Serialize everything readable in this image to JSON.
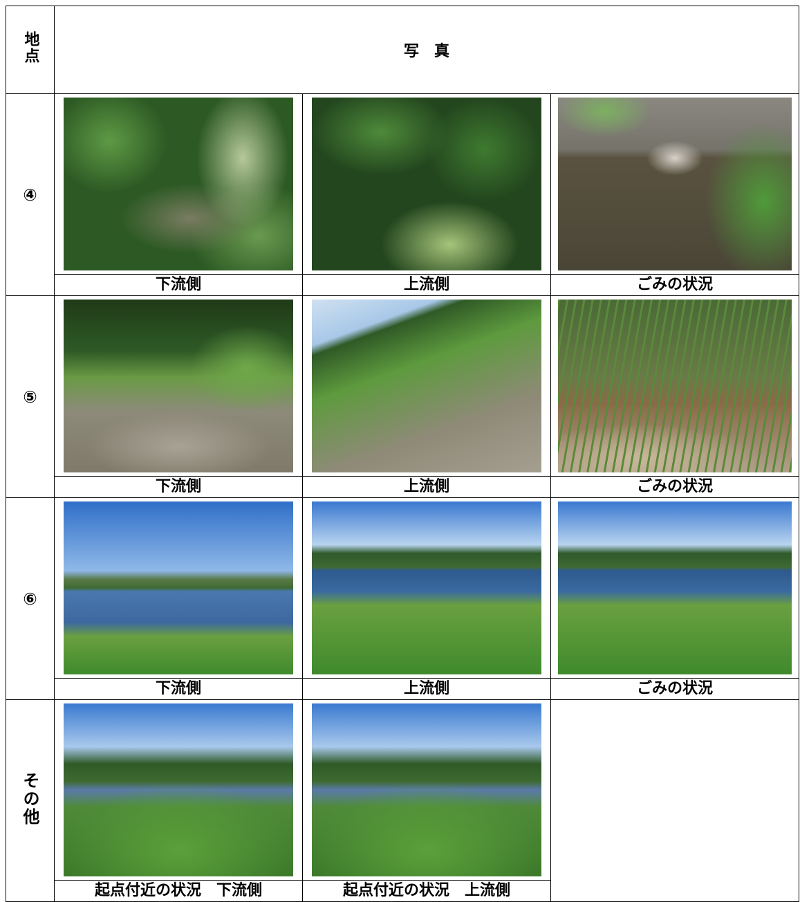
{
  "header": {
    "point": "地点",
    "photo": "写　真"
  },
  "rows": [
    {
      "point": "④",
      "captions": [
        "下流側",
        "上流側",
        "ごみの状況"
      ]
    },
    {
      "point": "⑤",
      "captions": [
        "下流側",
        "上流側",
        "ごみの状況"
      ]
    },
    {
      "point": "⑥",
      "captions": [
        "下流側",
        "上流側",
        "ごみの状況"
      ]
    },
    {
      "point": "その他",
      "captions": [
        "起点付近の状況　下流側",
        "起点付近の状況　上流側"
      ]
    }
  ]
}
